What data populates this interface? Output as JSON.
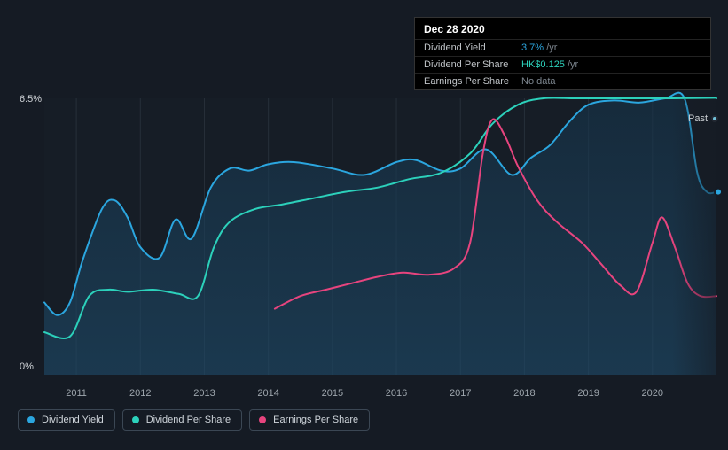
{
  "chart": {
    "type": "line",
    "background_color": "#151b24",
    "plot_background_overlay": "#1a212c",
    "label_color": "#9ea6ad",
    "y_label_color": "#d0d4d8",
    "grid_color": "#3a4552",
    "label_fontsize": 11,
    "yaxis": {
      "min": 0,
      "max": 6.5,
      "ticks": [
        {
          "value": 0,
          "label": "0%"
        },
        {
          "value": 6.5,
          "label": "6.5%"
        }
      ]
    },
    "xaxis": {
      "min": 2010.5,
      "max": 2021.0,
      "ticks": [
        {
          "value": 2011,
          "label": "2011"
        },
        {
          "value": 2012,
          "label": "2012"
        },
        {
          "value": 2013,
          "label": "2013"
        },
        {
          "value": 2014,
          "label": "2014"
        },
        {
          "value": 2015,
          "label": "2015"
        },
        {
          "value": 2016,
          "label": "2016"
        },
        {
          "value": 2017,
          "label": "2017"
        },
        {
          "value": 2018,
          "label": "2018"
        },
        {
          "value": 2019,
          "label": "2019"
        },
        {
          "value": 2020,
          "label": "2020"
        }
      ]
    },
    "area_fill": {
      "bottom_color": "#1e4b6a",
      "top_color": "#163349",
      "opacity": 0.6
    },
    "series": [
      {
        "id": "dividend_yield",
        "label": "Dividend Yield",
        "color": "#2ba6df",
        "line_width": 2,
        "area": true,
        "points": [
          [
            2010.5,
            1.7
          ],
          [
            2010.7,
            1.4
          ],
          [
            2010.9,
            1.7
          ],
          [
            2011.1,
            2.7
          ],
          [
            2011.4,
            3.9
          ],
          [
            2011.6,
            4.1
          ],
          [
            2011.8,
            3.7
          ],
          [
            2012.0,
            3.0
          ],
          [
            2012.3,
            2.75
          ],
          [
            2012.55,
            3.65
          ],
          [
            2012.8,
            3.2
          ],
          [
            2013.1,
            4.4
          ],
          [
            2013.4,
            4.85
          ],
          [
            2013.7,
            4.8
          ],
          [
            2014.0,
            4.95
          ],
          [
            2014.4,
            5.0
          ],
          [
            2015.0,
            4.85
          ],
          [
            2015.5,
            4.7
          ],
          [
            2016.0,
            5.0
          ],
          [
            2016.3,
            5.05
          ],
          [
            2016.7,
            4.8
          ],
          [
            2017.0,
            4.85
          ],
          [
            2017.4,
            5.3
          ],
          [
            2017.8,
            4.7
          ],
          [
            2018.1,
            5.1
          ],
          [
            2018.4,
            5.4
          ],
          [
            2018.7,
            5.95
          ],
          [
            2019.0,
            6.35
          ],
          [
            2019.4,
            6.45
          ],
          [
            2019.8,
            6.4
          ],
          [
            2020.2,
            6.5
          ],
          [
            2020.5,
            6.5
          ],
          [
            2020.7,
            4.75
          ],
          [
            2020.85,
            4.3
          ],
          [
            2021.0,
            4.3
          ]
        ]
      },
      {
        "id": "dividend_per_share",
        "label": "Dividend Per Share",
        "color": "#2cd1bb",
        "line_width": 2,
        "area": false,
        "points": [
          [
            2010.5,
            1.0
          ],
          [
            2010.9,
            0.9
          ],
          [
            2011.2,
            1.85
          ],
          [
            2011.5,
            2.0
          ],
          [
            2011.8,
            1.95
          ],
          [
            2012.2,
            2.0
          ],
          [
            2012.6,
            1.9
          ],
          [
            2012.9,
            1.85
          ],
          [
            2013.15,
            3.0
          ],
          [
            2013.4,
            3.6
          ],
          [
            2013.8,
            3.9
          ],
          [
            2014.2,
            4.0
          ],
          [
            2014.7,
            4.15
          ],
          [
            2015.2,
            4.3
          ],
          [
            2015.7,
            4.4
          ],
          [
            2016.2,
            4.6
          ],
          [
            2016.7,
            4.75
          ],
          [
            2017.15,
            5.2
          ],
          [
            2017.5,
            5.9
          ],
          [
            2017.9,
            6.35
          ],
          [
            2018.3,
            6.5
          ],
          [
            2018.8,
            6.5
          ],
          [
            2019.3,
            6.5
          ],
          [
            2019.8,
            6.5
          ],
          [
            2020.3,
            6.5
          ],
          [
            2020.8,
            6.5
          ],
          [
            2021.0,
            6.5
          ]
        ]
      },
      {
        "id": "earnings_per_share",
        "label": "Earnings Per Share",
        "color": "#e7447e",
        "line_width": 2,
        "area": false,
        "points": [
          [
            2014.1,
            1.55
          ],
          [
            2014.5,
            1.85
          ],
          [
            2014.9,
            2.0
          ],
          [
            2015.3,
            2.15
          ],
          [
            2015.7,
            2.3
          ],
          [
            2016.1,
            2.4
          ],
          [
            2016.5,
            2.35
          ],
          [
            2016.9,
            2.5
          ],
          [
            2017.15,
            3.1
          ],
          [
            2017.35,
            5.2
          ],
          [
            2017.5,
            6.0
          ],
          [
            2017.7,
            5.6
          ],
          [
            2017.9,
            4.9
          ],
          [
            2018.2,
            4.1
          ],
          [
            2018.5,
            3.6
          ],
          [
            2018.9,
            3.1
          ],
          [
            2019.2,
            2.6
          ],
          [
            2019.5,
            2.1
          ],
          [
            2019.75,
            1.95
          ],
          [
            2020.0,
            3.1
          ],
          [
            2020.15,
            3.7
          ],
          [
            2020.35,
            3.0
          ],
          [
            2020.55,
            2.15
          ],
          [
            2020.75,
            1.85
          ],
          [
            2021.0,
            1.85
          ]
        ]
      }
    ],
    "past_marker": {
      "label": "Past",
      "color": "#71c1d9"
    }
  },
  "tooltip": {
    "date": "Dec 28 2020",
    "rows": [
      {
        "key": "Dividend Yield",
        "value": "3.7%",
        "value_color": "#2ba6df",
        "suffix": "/yr",
        "suffix_color": "#7c858e"
      },
      {
        "key": "Dividend Per Share",
        "value": "HK$0.125",
        "value_color": "#2cd1bb",
        "suffix": "/yr",
        "suffix_color": "#7c858e"
      },
      {
        "key": "Earnings Per Share",
        "value": "No data",
        "value_color": "#7c858e",
        "suffix": "",
        "suffix_color": "#7c858e"
      }
    ]
  },
  "legend": {
    "items": [
      {
        "id": "dividend_yield",
        "label": "Dividend Yield",
        "color": "#2ba6df"
      },
      {
        "id": "dividend_per_share",
        "label": "Dividend Per Share",
        "color": "#2cd1bb"
      },
      {
        "id": "earnings_per_share",
        "label": "Earnings Per Share",
        "color": "#e7447e"
      }
    ]
  }
}
